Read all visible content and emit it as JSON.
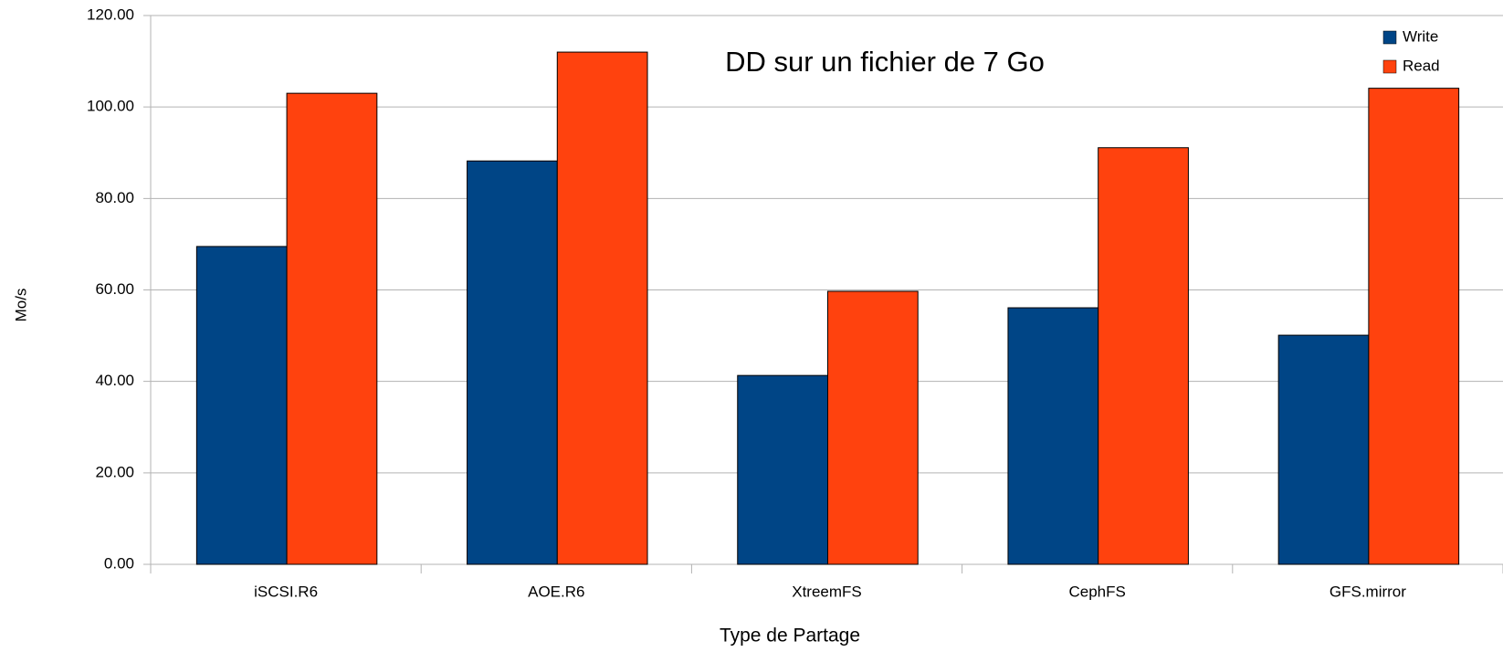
{
  "chart_data": {
    "type": "bar",
    "title": "DD sur un fichier de 7 Go",
    "x_label": "Type de Partage",
    "y_label": "Mo/s",
    "categories": [
      "iSCSI.R6",
      "AOE.R6",
      "XtreemFS",
      "CephFS",
      "GFS.mirror"
    ],
    "series": [
      {
        "name": "Write",
        "color": "#004586",
        "values": [
          69.5,
          88.2,
          41.3,
          56.1,
          50.1
        ]
      },
      {
        "name": "Read",
        "color": "#ff420e",
        "values": [
          103.0,
          112.0,
          59.7,
          91.1,
          104.1
        ]
      }
    ],
    "ylim": [
      0,
      120
    ],
    "yticks": [
      {
        "value": 0,
        "label": "0.00"
      },
      {
        "value": 20,
        "label": "20.00"
      },
      {
        "value": 40,
        "label": "40.00"
      },
      {
        "value": 60,
        "label": "60.00"
      },
      {
        "value": 80,
        "label": "80.00"
      },
      {
        "value": 100,
        "label": "100.00"
      },
      {
        "value": 120,
        "label": "120.00"
      }
    ],
    "grid": true,
    "legend": "upper right"
  }
}
